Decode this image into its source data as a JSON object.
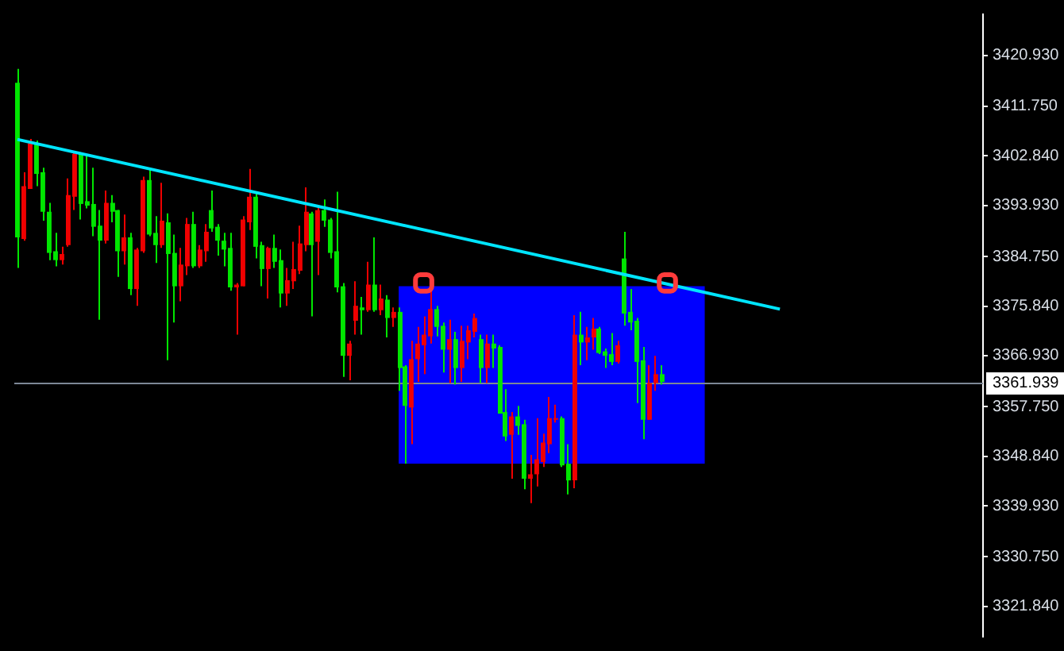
{
  "chart_data": {
    "type": "candlestick",
    "categories": [
      null,
      null,
      null,
      null,
      null,
      null,
      null,
      null,
      null,
      null,
      null,
      null,
      null,
      null,
      null,
      null,
      null,
      null,
      null,
      null,
      null,
      null,
      null,
      null,
      null,
      null,
      null,
      null,
      null,
      null,
      null,
      null,
      null,
      null,
      null,
      null,
      null,
      null,
      null,
      null,
      null,
      null,
      null,
      null,
      null,
      null,
      null,
      null,
      null,
      null,
      null,
      null,
      null,
      null,
      null,
      null,
      null,
      null,
      null,
      null,
      null,
      null,
      null,
      null,
      null,
      null,
      null,
      null,
      null,
      null,
      null,
      null,
      null,
      null,
      null,
      null,
      null,
      null,
      null,
      null,
      null,
      null,
      null,
      null,
      null,
      null,
      null,
      null,
      null,
      null,
      null,
      null,
      null,
      null,
      null,
      null,
      null,
      null,
      null,
      null,
      null,
      null,
      null,
      null,
      null,
      null,
      null,
      null,
      null,
      null,
      null,
      null,
      null,
      null,
      null,
      null,
      null,
      null,
      null,
      null,
      null,
      null,
      null,
      null,
      null,
      null,
      null,
      null,
      null,
      null,
      null,
      null,
      null,
      null,
      null,
      null,
      null,
      null,
      null,
      null,
      null,
      null,
      null,
      null,
      null,
      null,
      null,
      null,
      null,
      null,
      null,
      null,
      null,
      null,
      null
    ],
    "ohlc": [
      [
        3388.2,
        3418.5,
        3382.7,
        3416.0
      ],
      [
        3397.4,
        3399.9,
        3387.6,
        3387.9
      ],
      [
        3405.1,
        3405.9,
        3396.9,
        3396.9
      ],
      [
        3399.6,
        3405.6,
        3397.4,
        3405.1
      ],
      [
        3392.8,
        3400.7,
        3391.2,
        3399.9
      ],
      [
        3385.4,
        3394.4,
        3384.1,
        3392.8
      ],
      [
        3384.1,
        3389.0,
        3383.0,
        3385.7
      ],
      [
        3385.2,
        3386.5,
        3383.3,
        3384.1
      ],
      [
        3395.8,
        3398.8,
        3386.5,
        3386.8
      ],
      [
        3403.2,
        3403.7,
        3393.1,
        3395.5
      ],
      [
        3394.2,
        3403.5,
        3391.4,
        3403.2
      ],
      [
        3393.9,
        3402.9,
        3393.4,
        3394.7
      ],
      [
        3390.1,
        3400.7,
        3388.4,
        3394.2
      ],
      [
        3387.6,
        3393.1,
        3373.4,
        3390.3
      ],
      [
        3394.4,
        3396.6,
        3387.1,
        3387.6
      ],
      [
        3392.8,
        3395.8,
        3390.9,
        3394.4
      ],
      [
        3385.7,
        3393.1,
        3381.1,
        3393.1
      ],
      [
        3388.2,
        3392.3,
        3383.3,
        3385.7
      ],
      [
        3378.9,
        3389.0,
        3377.8,
        3388.2
      ],
      [
        3386.0,
        3386.3,
        3375.9,
        3378.9
      ],
      [
        3398.5,
        3399.1,
        3385.4,
        3385.7
      ],
      [
        3388.7,
        3400.5,
        3388.4,
        3398.5
      ],
      [
        3386.8,
        3392.0,
        3383.6,
        3389.0
      ],
      [
        3391.2,
        3398.0,
        3386.3,
        3386.8
      ],
      [
        3385.2,
        3392.5,
        3366.1,
        3390.9
      ],
      [
        3379.4,
        3388.7,
        3372.9,
        3385.4
      ],
      [
        3383.3,
        3386.3,
        3376.7,
        3379.4
      ],
      [
        3390.6,
        3391.7,
        3381.4,
        3383.0
      ],
      [
        3383.0,
        3392.8,
        3382.7,
        3390.6
      ],
      [
        3386.0,
        3386.8,
        3382.7,
        3383.0
      ],
      [
        3389.2,
        3390.6,
        3383.8,
        3385.7
      ],
      [
        3389.8,
        3396.6,
        3389.2,
        3393.1
      ],
      [
        3387.6,
        3390.6,
        3384.9,
        3390.1
      ],
      [
        3386.0,
        3389.0,
        3383.0,
        3387.6
      ],
      [
        3379.2,
        3389.0,
        3378.6,
        3386.3
      ],
      [
        3379.7,
        3380.0,
        3370.7,
        3379.2
      ],
      [
        3391.4,
        3392.0,
        3379.4,
        3379.4
      ],
      [
        3395.5,
        3400.5,
        3389.5,
        3390.9
      ],
      [
        3386.5,
        3396.4,
        3384.4,
        3395.5
      ],
      [
        3382.5,
        3387.4,
        3379.4,
        3386.8
      ],
      [
        3386.3,
        3386.5,
        3377.2,
        3382.5
      ],
      [
        3383.8,
        3388.7,
        3382.7,
        3386.3
      ],
      [
        3378.1,
        3386.0,
        3375.6,
        3384.1
      ],
      [
        3380.5,
        3382.7,
        3375.9,
        3378.1
      ],
      [
        3382.5,
        3387.4,
        3378.9,
        3380.3
      ],
      [
        3387.1,
        3390.3,
        3381.6,
        3382.2
      ],
      [
        3392.8,
        3397.2,
        3385.7,
        3386.8
      ],
      [
        3386.8,
        3392.8,
        3374.0,
        3392.5
      ],
      [
        3393.1,
        3393.6,
        3381.4,
        3387.4
      ],
      [
        3391.2,
        3395.0,
        3390.1,
        3393.1
      ],
      [
        3385.4,
        3391.7,
        3384.4,
        3391.4
      ],
      [
        3379.2,
        3396.4,
        3378.3,
        3385.7
      ],
      [
        3366.9,
        3380.0,
        3363.1,
        3379.4
      ],
      [
        3369.1,
        3369.6,
        3362.5,
        3366.9
      ],
      [
        3375.9,
        3380.3,
        3370.7,
        3373.2
      ],
      [
        3375.1,
        3377.5,
        3370.7,
        3375.6
      ],
      [
        3379.7,
        3383.8,
        3374.8,
        3375.1
      ],
      [
        3375.1,
        3388.2,
        3374.8,
        3379.7
      ],
      [
        3377.2,
        3379.7,
        3374.2,
        3375.1
      ],
      [
        3373.7,
        3377.8,
        3370.2,
        3377.0
      ],
      [
        3374.8,
        3375.6,
        3372.1,
        3373.7
      ],
      [
        3364.7,
        3375.6,
        3360.6,
        3374.8
      ],
      [
        3357.9,
        3365.2,
        3347.5,
        3365.0
      ],
      [
        3366.3,
        3369.6,
        3351.0,
        3357.6
      ],
      [
        3369.1,
        3372.1,
        3362.2,
        3366.3
      ],
      [
        3370.7,
        3374.0,
        3363.6,
        3368.8
      ],
      [
        3375.3,
        3379.4,
        3369.1,
        3370.4
      ],
      [
        3372.1,
        3375.9,
        3370.4,
        3375.3
      ],
      [
        3368.0,
        3372.9,
        3363.9,
        3372.3
      ],
      [
        3369.9,
        3373.4,
        3362.0,
        3368.0
      ],
      [
        3364.7,
        3371.2,
        3361.7,
        3369.9
      ],
      [
        3369.6,
        3372.3,
        3362.2,
        3364.7
      ],
      [
        3371.5,
        3372.3,
        3366.3,
        3369.3
      ],
      [
        3373.7,
        3374.5,
        3370.2,
        3371.2
      ],
      [
        3364.7,
        3370.7,
        3362.0,
        3369.9
      ],
      [
        3369.1,
        3370.7,
        3362.0,
        3364.7
      ],
      [
        3368.2,
        3370.7,
        3364.7,
        3369.1
      ],
      [
        3356.5,
        3368.8,
        3356.5,
        3368.5
      ],
      [
        3352.4,
        3360.9,
        3351.6,
        3356.8
      ],
      [
        3356.0,
        3356.8,
        3344.8,
        3352.7
      ],
      [
        3354.3,
        3357.9,
        3352.7,
        3356.0
      ],
      [
        3344.8,
        3355.4,
        3342.9,
        3354.6
      ],
      [
        3345.6,
        3349.1,
        3340.4,
        3344.8
      ],
      [
        3348.3,
        3355.7,
        3343.4,
        3345.6
      ],
      [
        3351.3,
        3352.9,
        3346.9,
        3347.8
      ],
      [
        3355.7,
        3359.5,
        3349.4,
        3351.0
      ],
      [
        3355.7,
        3358.1,
        3354.9,
        3355.4
      ],
      [
        3347.2,
        3356.0,
        3346.9,
        3355.7
      ],
      [
        3344.5,
        3351.0,
        3342.0,
        3347.5
      ],
      [
        3370.7,
        3374.2,
        3343.1,
        3344.5
      ],
      [
        3369.3,
        3374.8,
        3365.2,
        3370.7
      ],
      [
        3370.2,
        3372.1,
        3366.1,
        3369.3
      ],
      [
        3371.8,
        3373.7,
        3368.0,
        3370.2
      ],
      [
        3367.4,
        3372.1,
        3367.2,
        3371.8
      ],
      [
        3366.9,
        3368.2,
        3364.7,
        3367.7
      ],
      [
        3365.8,
        3371.0,
        3365.2,
        3367.2
      ],
      [
        3368.8,
        3369.6,
        3365.5,
        3365.8
      ],
      [
        3374.5,
        3389.2,
        3372.3,
        3384.4
      ],
      [
        3372.9,
        3378.9,
        3371.5,
        3374.8
      ],
      [
        3365.8,
        3373.7,
        3358.4,
        3373.2
      ],
      [
        3355.4,
        3368.5,
        3351.9,
        3366.1
      ],
      [
        3362.0,
        3365.2,
        3355.4,
        3355.4
      ],
      [
        3363.6,
        3366.9,
        3360.6,
        3362.0
      ],
      [
        3362.2,
        3365.2,
        3361.7,
        3363.6
      ],
      null,
      null,
      null,
      null,
      null,
      null,
      null,
      null,
      null,
      null,
      null,
      null,
      null,
      null,
      null,
      null,
      null,
      null,
      null,
      null,
      null,
      null,
      null,
      null,
      null,
      null,
      null,
      null,
      null,
      null,
      null,
      null,
      null,
      null,
      null,
      null,
      null,
      null,
      null,
      null,
      null,
      null,
      null,
      null,
      null,
      null,
      null,
      null,
      null,
      null,
      null
    ],
    "colors": [
      "#00e600",
      "#f00000",
      "#f00000",
      "#00e600",
      "#00e600",
      "#00e600",
      "#00e600",
      "#f00000",
      "#f00000",
      "#f00000",
      "#00e600",
      "#00e600",
      "#00e600",
      "#00e600",
      "#f00000",
      "#00e600",
      "#00e600",
      "#f00000",
      "#00e600",
      "#f00000",
      "#f00000",
      "#00e600",
      "#00e600",
      "#f00000",
      "#00e600",
      "#00e600",
      "#f00000",
      "#f00000",
      "#00e600",
      "#f00000",
      "#f00000",
      "#00e600",
      "#00e600",
      "#00e600",
      "#00e600",
      "#f00000",
      "#f00000",
      "#f00000",
      "#00e600",
      "#00e600",
      "#f00000",
      "#00e600",
      "#00e600",
      "#f00000",
      "#f00000",
      "#f00000",
      "#f00000",
      "#00e600",
      "#f00000",
      "#00e600",
      "#00e600",
      "#00e600",
      "#00e600",
      "#f00000",
      "#f00000",
      "#00e600",
      "#f00000",
      "#00e600",
      "#f00000",
      "#00e600",
      "#f00000",
      "#00e600",
      "#00e600",
      "#f00000",
      "#f00000",
      "#f00000",
      "#f00000",
      "#00e600",
      "#00e600",
      "#f00000",
      "#00e600",
      "#f00000",
      "#f00000",
      "#f00000",
      "#00e600",
      "#f00000",
      "#00e600",
      "#00e600",
      "#00e600",
      "#f00000",
      "#00e600",
      "#00e600",
      "#f00000",
      "#f00000",
      "#f00000",
      "#f00000",
      "#f00000",
      "#00e600",
      "#00e600",
      "#f00000",
      "#00e600",
      "#f00000",
      "#f00000",
      "#00e600",
      "#00e600",
      "#00e600",
      "#f00000",
      "#00e600",
      "#00e600",
      "#00e600",
      "#00e600",
      "#f00000",
      "#f00000",
      "#00e600",
      null,
      null,
      null,
      null,
      null,
      null,
      null,
      null,
      null,
      null,
      null,
      null,
      null,
      null,
      null,
      null,
      null,
      null,
      null,
      null,
      null,
      null,
      null,
      null,
      null,
      null,
      null,
      null,
      null,
      null,
      null,
      null,
      null,
      null,
      null,
      null,
      null,
      null,
      null,
      null,
      null,
      null,
      null,
      null,
      null,
      null,
      null,
      null,
      null,
      null,
      null
    ],
    "series": [
      {
        "type": "line",
        "color": "#0000ff",
        "values": [
          null,
          null,
          null,
          null,
          null,
          null,
          null,
          null,
          null,
          null,
          null,
          null,
          null,
          null,
          null,
          null,
          null,
          null,
          null,
          null,
          null,
          null,
          null,
          null,
          null,
          null,
          null,
          null,
          null,
          null,
          null,
          null,
          null,
          null,
          null,
          null,
          null,
          null,
          null,
          null,
          null,
          null,
          null,
          null,
          null,
          null,
          null,
          null,
          null,
          null,
          null,
          null,
          null,
          null,
          null,
          null,
          null,
          null,
          null,
          null,
          null,
          null,
          null,
          null,
          null,
          null,
          null,
          null,
          null,
          null,
          null,
          null,
          null,
          null,
          null,
          null,
          null,
          null,
          null,
          null,
          null,
          null,
          null,
          null,
          null,
          null,
          null,
          null,
          null,
          null,
          null,
          null,
          null,
          null,
          null,
          null,
          null,
          null,
          null,
          null,
          null,
          null,
          null,
          null,
          null,
          null,
          null,
          null,
          null,
          null,
          null,
          null,
          null,
          null,
          null,
          null,
          null,
          null,
          null,
          null,
          null,
          null,
          null,
          null,
          null,
          null,
          null,
          null,
          null,
          null,
          null,
          null,
          null,
          null,
          null,
          null,
          null,
          null,
          null,
          null,
          null,
          null,
          null,
          null,
          null,
          null,
          null,
          null,
          null,
          null,
          null,
          null,
          null,
          null,
          null
        ],
        "upper": [
          null,
          null,
          null,
          null,
          null,
          null,
          null,
          null,
          null,
          null,
          null,
          null,
          null,
          null,
          null,
          null,
          null,
          null,
          null,
          null,
          null,
          null,
          null,
          null,
          null,
          null,
          null,
          null,
          null,
          null,
          null,
          null,
          null,
          null,
          null,
          null,
          null,
          null,
          null,
          null,
          null,
          null,
          null,
          null,
          null,
          null,
          null,
          null,
          null,
          null,
          null,
          null,
          null,
          null,
          null,
          null,
          null,
          null,
          null,
          null,
          null,
          3379.4,
          null,
          null,
          null,
          null,
          null,
          null,
          null,
          null,
          null,
          null,
          null,
          null,
          null,
          null,
          null,
          null,
          null,
          null,
          null,
          null,
          null,
          null,
          null,
          null,
          null,
          null,
          null,
          null,
          null,
          null,
          null,
          null,
          null,
          null,
          null,
          null,
          null,
          null,
          null,
          null,
          null,
          null,
          null,
          null,
          null,
          null,
          null,
          null,
          3379.4,
          null,
          null,
          null,
          null,
          null,
          null,
          null,
          null,
          null,
          null,
          null,
          null,
          null,
          null,
          null,
          null,
          null,
          null,
          null,
          null,
          null,
          null,
          null,
          null,
          null,
          null,
          null,
          null,
          null,
          null,
          null,
          null,
          null,
          null,
          null,
          null,
          null,
          null,
          null,
          null,
          null,
          null,
          null,
          null
        ],
        "lower": [
          null,
          null,
          null,
          null,
          null,
          null,
          null,
          null,
          null,
          null,
          null,
          null,
          null,
          null,
          null,
          null,
          null,
          null,
          null,
          null,
          null,
          null,
          null,
          null,
          null,
          null,
          null,
          null,
          null,
          null,
          null,
          null,
          null,
          null,
          null,
          null,
          null,
          null,
          null,
          null,
          null,
          null,
          null,
          null,
          null,
          null,
          null,
          null,
          null,
          null,
          null,
          null,
          null,
          null,
          null,
          null,
          null,
          null,
          null,
          null,
          null,
          3347.5,
          null,
          null,
          null,
          null,
          null,
          null,
          null,
          null,
          null,
          null,
          null,
          null,
          null,
          null,
          null,
          null,
          null,
          null,
          null,
          null,
          null,
          null,
          null,
          null,
          null,
          null,
          null,
          null,
          null,
          null,
          null,
          null,
          null,
          null,
          null,
          null,
          null,
          null,
          null,
          null,
          null,
          null,
          null,
          null,
          null,
          null,
          null,
          null,
          3347.5,
          null,
          null,
          null,
          null,
          null,
          null,
          null,
          null,
          null,
          null,
          null,
          null,
          null,
          null,
          null,
          null,
          null,
          null,
          null,
          null,
          null,
          null,
          null,
          null,
          null,
          null,
          null,
          null,
          null,
          null,
          null,
          null,
          null,
          null,
          null,
          null,
          null,
          null,
          null,
          null,
          null,
          null,
          null,
          null
        ]
      },
      {
        "type": "line",
        "color": "#00e5ff",
        "values": [
          3405.8,
          null,
          null,
          null,
          null,
          null,
          null,
          null,
          null,
          null,
          null,
          null,
          null,
          null,
          null,
          null,
          null,
          null,
          null,
          null,
          null,
          null,
          null,
          null,
          null,
          null,
          null,
          null,
          null,
          null,
          null,
          null,
          null,
          null,
          null,
          null,
          null,
          null,
          null,
          null,
          null,
          null,
          null,
          null,
          null,
          null,
          null,
          null,
          null,
          null,
          null,
          null,
          null,
          null,
          null,
          null,
          null,
          null,
          null,
          null,
          null,
          null,
          null,
          null,
          null,
          null,
          null,
          null,
          null,
          null,
          null,
          null,
          null,
          null,
          null,
          null,
          null,
          null,
          null,
          null,
          null,
          null,
          null,
          null,
          null,
          null,
          null,
          null,
          null,
          null,
          null,
          null,
          null,
          null,
          null,
          null,
          null,
          null,
          null,
          null,
          null,
          null,
          null,
          null,
          null,
          null,
          null,
          null,
          null,
          null,
          null,
          null,
          null,
          null,
          null,
          null,
          null,
          null,
          null,
          null,
          null,
          null,
          3375.3,
          null,
          null,
          null,
          null,
          null,
          null,
          null,
          null,
          null,
          null,
          null,
          null,
          null,
          null,
          null,
          null,
          null,
          null,
          null,
          null,
          null,
          null,
          null,
          null,
          null,
          null,
          null,
          null,
          null,
          null,
          null,
          null
        ]
      },
      {
        "type": "scatter",
        "color": "#ff3b3b",
        "marker": "square",
        "values": [
          null,
          null,
          null,
          null,
          null,
          null,
          null,
          null,
          null,
          null,
          null,
          null,
          null,
          null,
          null,
          null,
          null,
          null,
          null,
          null,
          null,
          null,
          null,
          null,
          null,
          null,
          null,
          null,
          null,
          null,
          null,
          null,
          null,
          null,
          null,
          null,
          null,
          null,
          null,
          null,
          null,
          null,
          null,
          null,
          null,
          null,
          null,
          null,
          null,
          null,
          null,
          null,
          null,
          null,
          null,
          null,
          null,
          null,
          null,
          null,
          null,
          null,
          null,
          null,
          null,
          3380.0,
          null,
          null,
          null,
          null,
          null,
          null,
          null,
          null,
          null,
          null,
          null,
          null,
          null,
          null,
          null,
          null,
          null,
          null,
          null,
          null,
          null,
          null,
          null,
          null,
          null,
          null,
          null,
          null,
          null,
          null,
          null,
          null,
          null,
          null,
          null,
          null,
          null,
          null,
          3380.0,
          null,
          null,
          null,
          null,
          null,
          null,
          null,
          null,
          null,
          null,
          null,
          null,
          null,
          null,
          null,
          null,
          null,
          null,
          null,
          null,
          null,
          null,
          null,
          null,
          null,
          null,
          null,
          null,
          null,
          null,
          null,
          null,
          null,
          null,
          null,
          null,
          null,
          null,
          null,
          null,
          null,
          null,
          null,
          null,
          null,
          null,
          null,
          null,
          null,
          null
        ]
      }
    ],
    "ylim": [
      3316.4,
      3428.3
    ],
    "yticks": [
      {
        "value": 3321.84,
        "label": "3321.840"
      },
      {
        "value": 3330.75,
        "label": "3330.750"
      },
      {
        "value": 3339.93,
        "label": "3339.930"
      },
      {
        "value": 3348.84,
        "label": "3348.840"
      },
      {
        "value": 3357.75,
        "label": "3357.750"
      },
      {
        "value": 3366.93,
        "label": "3366.930"
      },
      {
        "value": 3375.84,
        "label": "3375.840"
      },
      {
        "value": 3384.75,
        "label": "3384.750"
      },
      {
        "value": 3393.93,
        "label": "3393.930"
      },
      {
        "value": 3402.84,
        "label": "3402.840"
      },
      {
        "value": 3411.75,
        "label": "3411.750"
      },
      {
        "value": 3420.93,
        "label": "3420.930"
      }
    ],
    "tick_labels": "y",
    "ref_lines": [
      {
        "axis": "y",
        "value": 3361.939,
        "label": "3361.939",
        "color": "#7d8896"
      }
    ]
  }
}
